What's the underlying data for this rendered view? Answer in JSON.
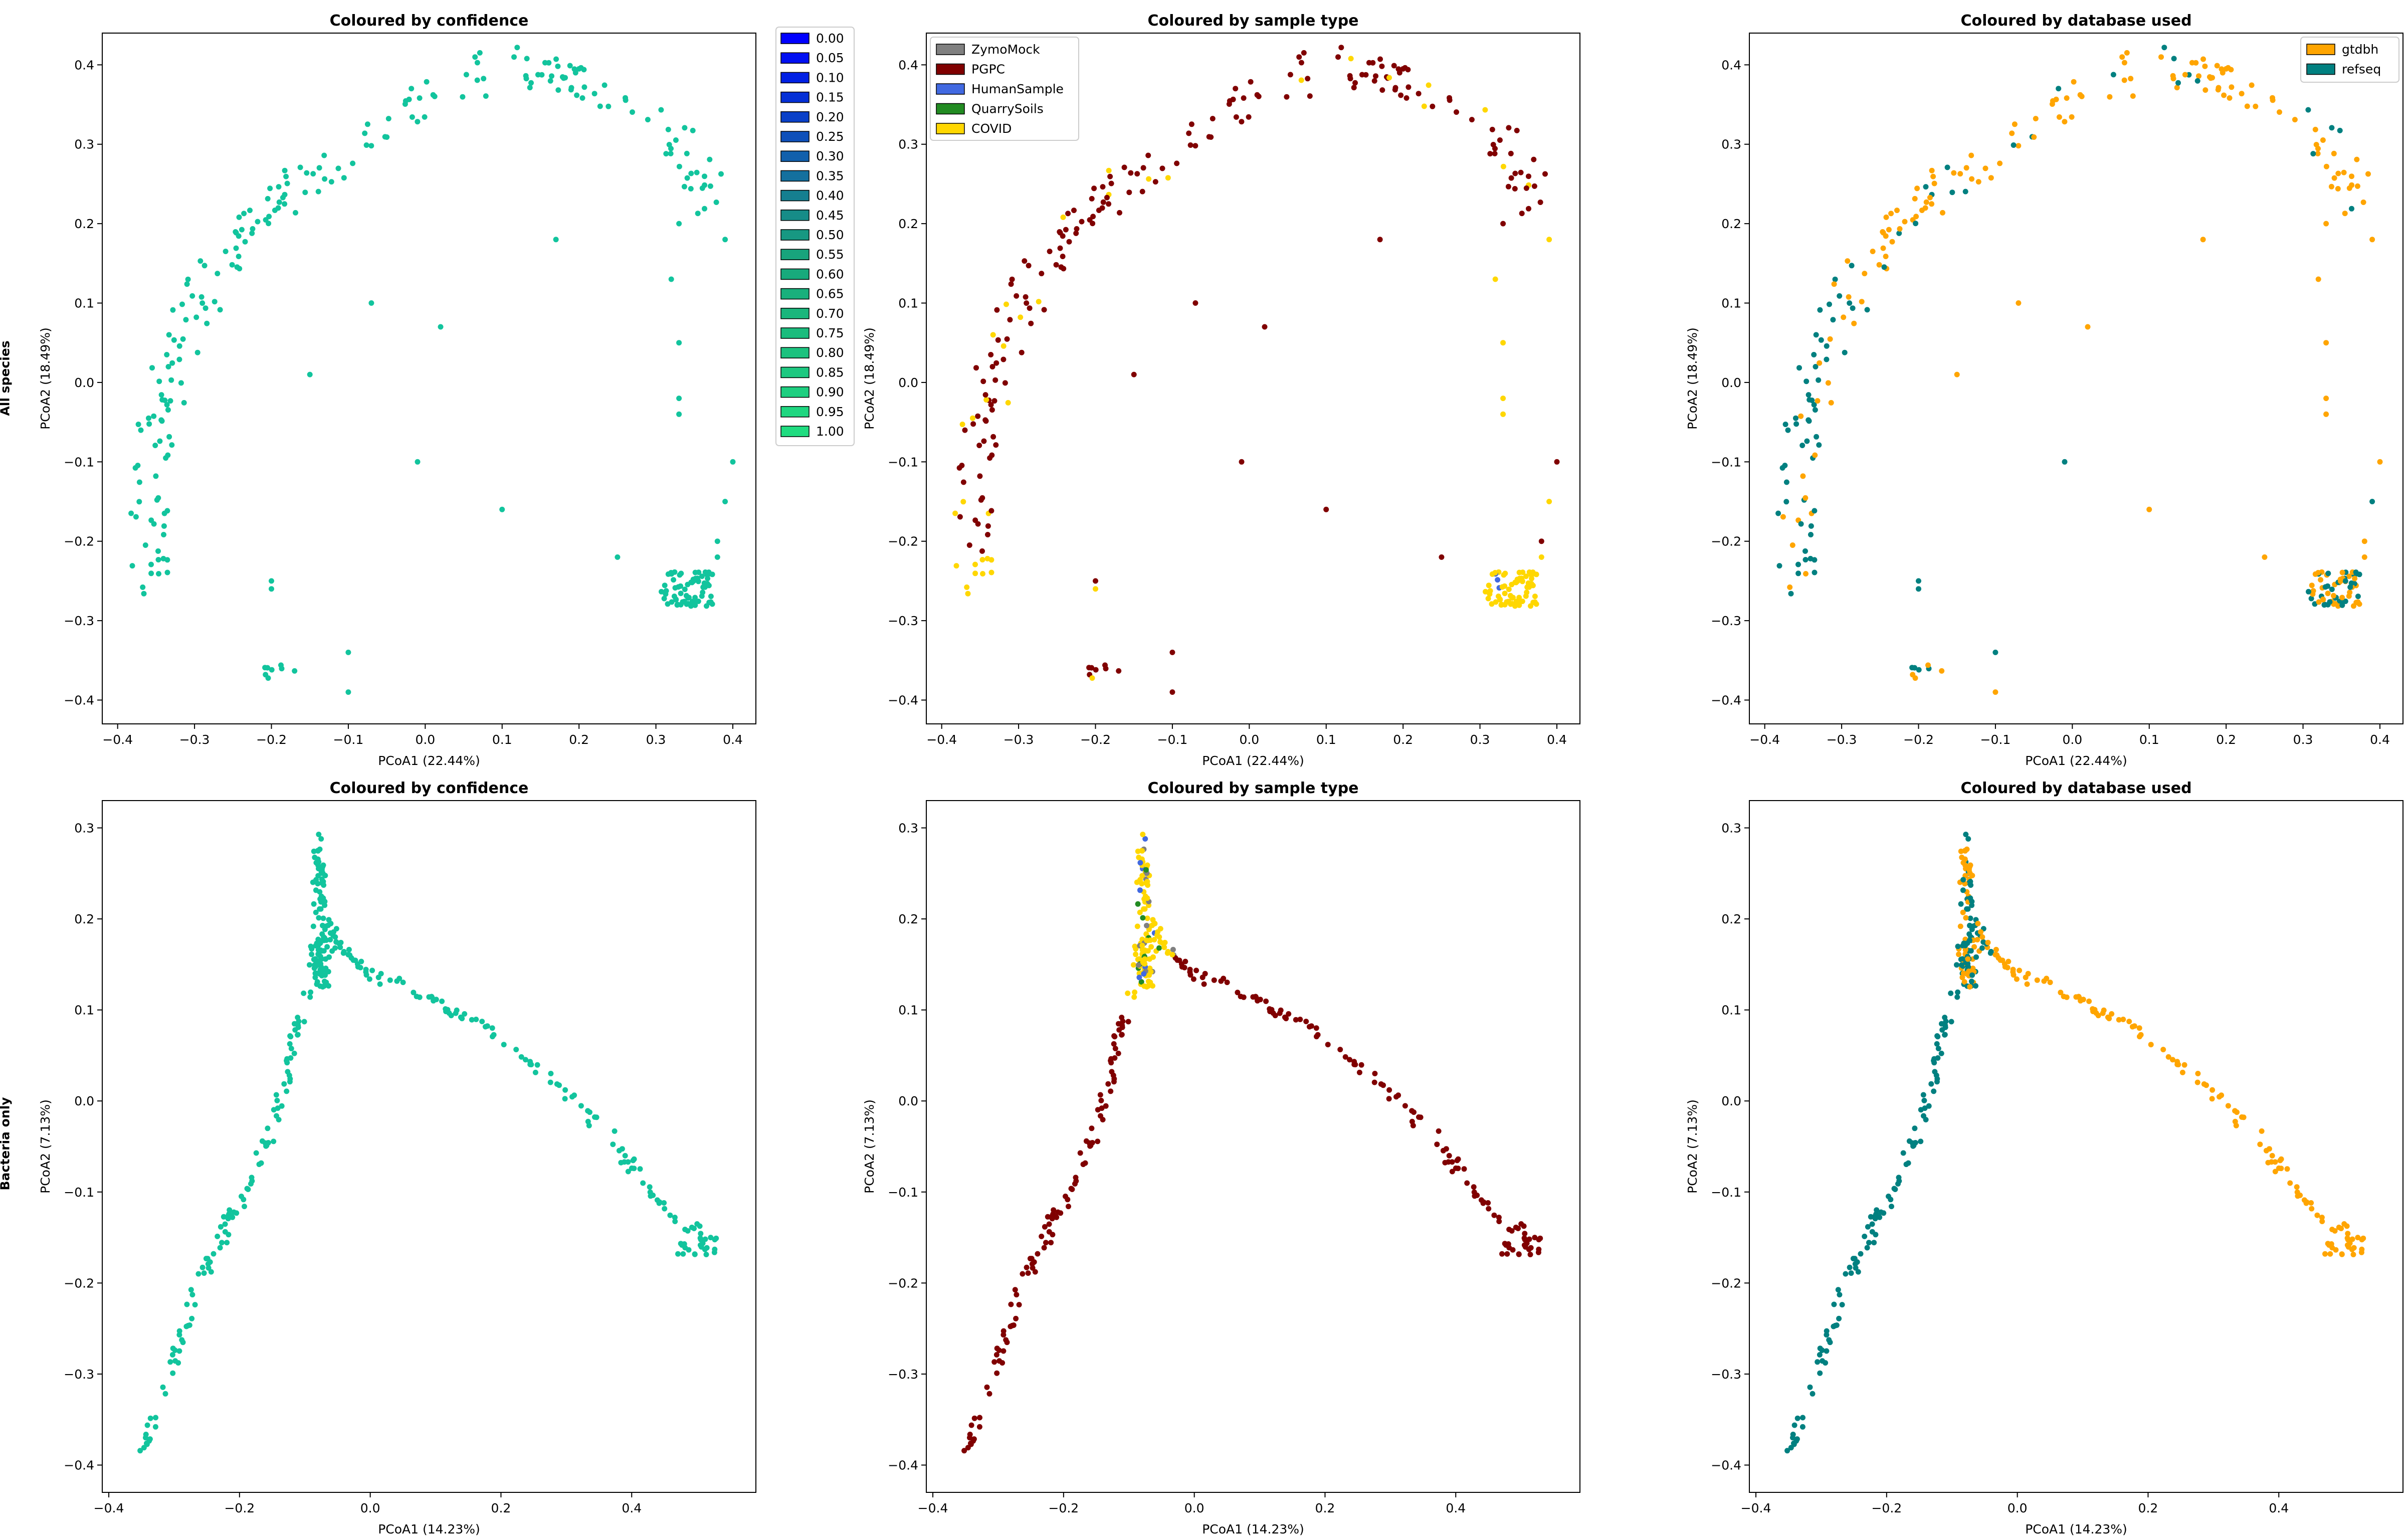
{
  "row_labels": [
    "All species",
    "Bacteria only"
  ],
  "palette": {
    "confidence_point": "#12c49d",
    "ZymoMock": "#808080",
    "PGPC": "#800000",
    "HumanSample": "#4169e1",
    "QuarrySoils": "#228b22",
    "COVID": "#ffd700",
    "gtdbh": "#ffa500",
    "refseq": "#008080"
  },
  "confidence_legend": {
    "labels": [
      "0.00",
      "0.05",
      "0.10",
      "0.15",
      "0.20",
      "0.25",
      "0.30",
      "0.35",
      "0.40",
      "0.45",
      "0.50",
      "0.55",
      "0.60",
      "0.65",
      "0.70",
      "0.75",
      "0.80",
      "0.85",
      "0.90",
      "0.95",
      "1.00"
    ],
    "colors": [
      "#0000ff",
      "#0010f2",
      "#0020e4",
      "#0530d6",
      "#0a40c8",
      "#0f50ba",
      "#1260ac",
      "#14709e",
      "#157f90",
      "#168c88",
      "#179882",
      "#18a47c",
      "#18aa7c",
      "#19b07c",
      "#1ab67c",
      "#1bbc7d",
      "#1cc27e",
      "#1dc880",
      "#1ecf80",
      "#1fd680",
      "#20dc80"
    ]
  },
  "sample_legend": [
    "ZymoMock",
    "PGPC",
    "HumanSample",
    "QuarrySoils",
    "COVID"
  ],
  "db_legend": [
    "gtdbh",
    "refseq"
  ],
  "chart_data": [
    {
      "id": "all-confidence",
      "type": "scatter",
      "title": "Coloured by confidence",
      "xlabel": "PCoA1 (22.44%)",
      "ylabel": "PCoA2 (18.49%)",
      "xlim": [
        -0.42,
        0.43
      ],
      "ylim": [
        -0.43,
        0.44
      ],
      "xticks": [
        -0.4,
        -0.3,
        -0.2,
        -0.1,
        0.0,
        0.1,
        0.2,
        0.3,
        0.4
      ],
      "xtick_labels": [
        "−0.4",
        "−0.3",
        "−0.2",
        "−0.1",
        "0.0",
        "0.1",
        "0.2",
        "0.3",
        "0.4"
      ],
      "yticks": [
        -0.4,
        -0.3,
        -0.2,
        -0.1,
        0.0,
        0.1,
        0.2,
        0.3,
        0.4
      ],
      "ytick_labels": [
        "−0.4",
        "−0.3",
        "−0.2",
        "−0.1",
        "0.0",
        "0.1",
        "0.2",
        "0.3",
        "0.4"
      ],
      "legend": "confidence",
      "legend_position": "outside-right",
      "color_mode": "confidence",
      "curve": "arc_all"
    },
    {
      "id": "all-sample",
      "type": "scatter",
      "title": "Coloured by sample type",
      "xlabel": "PCoA1 (22.44%)",
      "ylabel": "PCoA2 (18.49%)",
      "xlim": [
        -0.42,
        0.43
      ],
      "ylim": [
        -0.43,
        0.44
      ],
      "xticks": [
        -0.4,
        -0.3,
        -0.2,
        -0.1,
        0.0,
        0.1,
        0.2,
        0.3,
        0.4
      ],
      "xtick_labels": [
        "−0.4",
        "−0.3",
        "−0.2",
        "−0.1",
        "0.0",
        "0.1",
        "0.2",
        "0.3",
        "0.4"
      ],
      "yticks": [
        -0.4,
        -0.3,
        -0.2,
        -0.1,
        0.0,
        0.1,
        0.2,
        0.3,
        0.4
      ],
      "ytick_labels": [
        "−0.4",
        "−0.3",
        "−0.2",
        "−0.1",
        "0.0",
        "0.1",
        "0.2",
        "0.3",
        "0.4"
      ],
      "legend": "sample",
      "legend_position": "upper-left",
      "color_mode": "sample",
      "curve": "arc_all"
    },
    {
      "id": "all-database",
      "type": "scatter",
      "title": "Coloured by database used",
      "xlabel": "PCoA1 (22.44%)",
      "ylabel": "PCoA2 (18.49%)",
      "xlim": [
        -0.42,
        0.43
      ],
      "ylim": [
        -0.43,
        0.44
      ],
      "xticks": [
        -0.4,
        -0.3,
        -0.2,
        -0.1,
        0.0,
        0.1,
        0.2,
        0.3,
        0.4
      ],
      "xtick_labels": [
        "−0.4",
        "−0.3",
        "−0.2",
        "−0.1",
        "0.0",
        "0.1",
        "0.2",
        "0.3",
        "0.4"
      ],
      "yticks": [
        -0.4,
        -0.3,
        -0.2,
        -0.1,
        0.0,
        0.1,
        0.2,
        0.3,
        0.4
      ],
      "ytick_labels": [
        "−0.4",
        "−0.3",
        "−0.2",
        "−0.1",
        "0.0",
        "0.1",
        "0.2",
        "0.3",
        "0.4"
      ],
      "legend": "db",
      "legend_position": "upper-right",
      "color_mode": "db",
      "curve": "arc_all"
    },
    {
      "id": "bact-confidence",
      "type": "scatter",
      "title": "Coloured by confidence",
      "xlabel": "PCoA1 (14.23%)",
      "ylabel": "PCoA2 (7.13%)",
      "xlim": [
        -0.41,
        0.59
      ],
      "ylim": [
        -0.43,
        0.33
      ],
      "xticks": [
        -0.4,
        -0.2,
        0.0,
        0.2,
        0.4
      ],
      "xtick_labels": [
        "−0.4",
        "−0.2",
        "0.0",
        "0.2",
        "0.4"
      ],
      "yticks": [
        -0.4,
        -0.3,
        -0.2,
        -0.1,
        0.0,
        0.1,
        0.2,
        0.3
      ],
      "ytick_labels": [
        "−0.4",
        "−0.3",
        "−0.2",
        "−0.1",
        "0.0",
        "0.1",
        "0.2",
        "0.3"
      ],
      "legend": "none",
      "color_mode": "confidence",
      "curve": "v_bact"
    },
    {
      "id": "bact-sample",
      "type": "scatter",
      "title": "Coloured by sample type",
      "xlabel": "PCoA1 (14.23%)",
      "ylabel": "PCoA2 (7.13%)",
      "xlim": [
        -0.41,
        0.59
      ],
      "ylim": [
        -0.43,
        0.33
      ],
      "xticks": [
        -0.4,
        -0.2,
        0.0,
        0.2,
        0.4
      ],
      "xtick_labels": [
        "−0.4",
        "−0.2",
        "0.0",
        "0.2",
        "0.4"
      ],
      "yticks": [
        -0.4,
        -0.3,
        -0.2,
        -0.1,
        0.0,
        0.1,
        0.2,
        0.3
      ],
      "ytick_labels": [
        "−0.4",
        "−0.3",
        "−0.2",
        "−0.1",
        "0.0",
        "0.1",
        "0.2",
        "0.3"
      ],
      "legend": "none",
      "color_mode": "sample",
      "curve": "v_bact"
    },
    {
      "id": "bact-database",
      "type": "scatter",
      "title": "Coloured by database used",
      "xlabel": "PCoA1 (14.23%)",
      "ylabel": "PCoA2 (7.13%)",
      "xlim": [
        -0.41,
        0.59
      ],
      "ylim": [
        -0.43,
        0.33
      ],
      "xticks": [
        -0.4,
        -0.2,
        0.0,
        0.2,
        0.4
      ],
      "xtick_labels": [
        "−0.4",
        "−0.2",
        "0.0",
        "0.2",
        "0.4"
      ],
      "yticks": [
        -0.4,
        -0.3,
        -0.2,
        -0.1,
        0.0,
        0.1,
        0.2,
        0.3
      ],
      "ytick_labels": [
        "−0.4",
        "−0.3",
        "−0.2",
        "−0.1",
        "0.0",
        "0.1",
        "0.2",
        "0.3"
      ],
      "legend": "none",
      "color_mode": "db",
      "curve": "v_bact"
    }
  ],
  "point_sets": {
    "arc_all": {
      "path": [
        [
          -0.36,
          -0.25
        ],
        [
          -0.36,
          -0.15
        ],
        [
          -0.35,
          -0.05
        ],
        [
          -0.32,
          0.05
        ],
        [
          -0.28,
          0.13
        ],
        [
          -0.2,
          0.22
        ],
        [
          -0.1,
          0.3
        ],
        [
          0.0,
          0.36
        ],
        [
          0.1,
          0.4
        ],
        [
          0.2,
          0.38
        ],
        [
          0.28,
          0.33
        ],
        [
          0.35,
          0.28
        ],
        [
          0.38,
          0.22
        ]
      ],
      "count": 210,
      "jitter": 0.025,
      "clusters": [
        {
          "center": [
            0.34,
            -0.26
          ],
          "spread": [
            0.035,
            0.022
          ],
          "count": 70
        },
        {
          "center": [
            -0.19,
            -0.36
          ],
          "spread": [
            0.025,
            0.015
          ],
          "count": 8
        }
      ],
      "extras": [
        [
          -0.2,
          -0.25
        ],
        [
          -0.2,
          -0.26
        ],
        [
          0.1,
          -0.16
        ],
        [
          -0.01,
          -0.1
        ],
        [
          -0.1,
          -0.39
        ],
        [
          -0.1,
          -0.34
        ],
        [
          0.02,
          0.07
        ],
        [
          0.17,
          0.18
        ],
        [
          0.32,
          0.13
        ],
        [
          0.33,
          0.2
        ],
        [
          0.33,
          -0.02
        ],
        [
          0.33,
          -0.04
        ],
        [
          0.33,
          0.05
        ],
        [
          0.39,
          0.18
        ],
        [
          0.4,
          -0.1
        ],
        [
          0.39,
          -0.15
        ],
        [
          0.38,
          -0.2
        ],
        [
          0.38,
          -0.22
        ],
        [
          -0.15,
          0.01
        ],
        [
          -0.07,
          0.1
        ],
        [
          0.25,
          -0.22
        ]
      ]
    },
    "v_bact": {
      "path": [
        [
          -0.35,
          -0.39
        ],
        [
          -0.3,
          -0.28
        ],
        [
          -0.25,
          -0.18
        ],
        [
          -0.2,
          -0.11
        ],
        [
          -0.15,
          -0.03
        ],
        [
          -0.12,
          0.05
        ],
        [
          -0.09,
          0.13
        ],
        [
          -0.08,
          0.2
        ],
        [
          -0.08,
          0.29
        ],
        [
          -0.07,
          0.2
        ],
        [
          -0.05,
          0.17
        ],
        [
          0.0,
          0.14
        ],
        [
          0.1,
          0.11
        ],
        [
          0.2,
          0.07
        ],
        [
          0.3,
          0.01
        ],
        [
          0.38,
          -0.05
        ],
        [
          0.45,
          -0.12
        ],
        [
          0.53,
          -0.16
        ]
      ],
      "count": 300,
      "jitter": 0.008,
      "clusters": [
        {
          "center": [
            -0.075,
            0.155
          ],
          "spread": [
            0.012,
            0.03
          ],
          "count": 45
        },
        {
          "center": [
            0.5,
            -0.16
          ],
          "spread": [
            0.03,
            0.01
          ],
          "count": 20
        }
      ],
      "extras": []
    }
  }
}
